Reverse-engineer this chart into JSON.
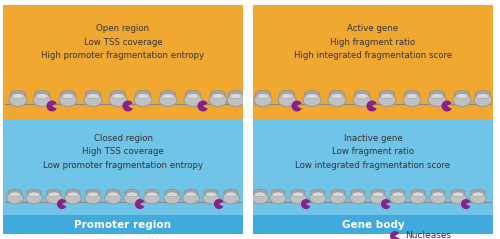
{
  "fig_width": 5.0,
  "fig_height": 2.39,
  "dpi": 100,
  "bg_color": "#ffffff",
  "orange_color": "#F0A830",
  "blue_color": "#70C4E8",
  "blue_footer_color": "#40AADC",
  "nuc_color": "#c0c0c0",
  "nuc_outline": "#909090",
  "nuclease_color": "#882288",
  "dna_color": "#888888",
  "text_color": "#333333",
  "white_color": "#ffffff",
  "left_top_text": "Open region\nLow TSS coverage\nHigh promoter fragmentation entropy",
  "left_bot_text": "Closed region\nHigh TSS coverage\nLow promoter fragmentation entropy",
  "right_top_text": "Active gene\nHigh fragment ratio\nHigh integrated fragmentation score",
  "right_bot_text": "Inactive gene\nLow fragment ratio\nLow integrated fragmentation score",
  "left_footer": "Promoter region",
  "right_footer": "Gene body",
  "legend_text": "Nucleases"
}
